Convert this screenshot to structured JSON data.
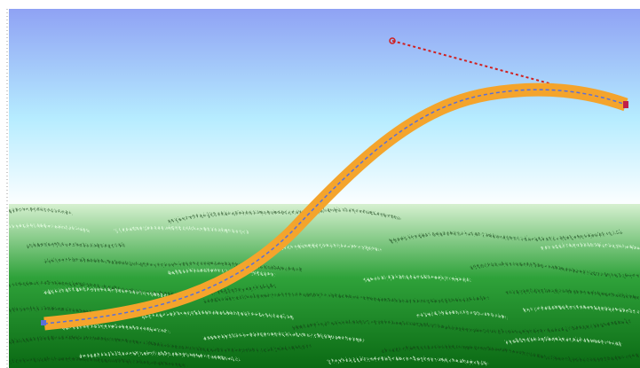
{
  "canvas": {
    "sky_top_color": "#8fa2f4",
    "sky_mid_color": "#b6ecff",
    "sky_bottom_color": "#ffffff",
    "grass_top_color": "#d6f0d0",
    "grass_mid_color": "#2fa23a",
    "grass_bottom_color": "#0b6a14"
  },
  "stroke": {
    "color": "#f4a42c",
    "path_guide_color": "#5a6fd8",
    "handle_color": "#d02020",
    "endpoint_color": "#c0204a"
  },
  "icons": {
    "left_ruler": "vertical-ruler-icon",
    "start_anchor": "anchor-point-icon",
    "end_anchor": "anchor-point-icon",
    "bezier_handle": "bezier-handle-icon"
  }
}
